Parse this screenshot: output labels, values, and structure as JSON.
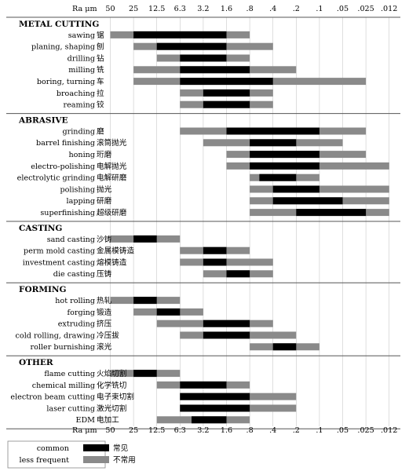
{
  "chart_data": {
    "type": "bar",
    "title": "",
    "axis_label": "Ra μm",
    "ticks": [
      "50",
      "25",
      "12.5",
      "6.3",
      "3.2",
      "1.6",
      ".8",
      ".4",
      ".2",
      ".1",
      ".05",
      ".025",
      ".012"
    ],
    "legend": {
      "placement": "bottom-left",
      "common_label": "common",
      "common_label_cn": "常见",
      "less_label": "less frequent",
      "less_label_cn": "不常用"
    },
    "colors": {
      "common": "#000000",
      "less_frequent": "#8a8a8a",
      "divider": "#555555"
    },
    "groups": [
      {
        "title": "METAL CUTTING",
        "processes": [
          {
            "label": "sawing",
            "cn": "锯",
            "less": [
              "50",
              ".8"
            ],
            "common": [
              "25",
              "1.6"
            ]
          },
          {
            "label": "planing, shaping",
            "cn": "刨",
            "less": [
              "25",
              ".4"
            ],
            "common": [
              "12.5",
              "1.6"
            ]
          },
          {
            "label": "drilling",
            "cn": "钻",
            "less": [
              "12.5",
              ".8"
            ],
            "common": [
              "6.3",
              "1.6"
            ]
          },
          {
            "label": "milling",
            "cn": "铣",
            "less": [
              "25",
              ".2"
            ],
            "common": [
              "6.3",
              ".8"
            ]
          },
          {
            "label": "boring, turning",
            "cn": "车",
            "less": [
              "25",
              ".025"
            ],
            "common": [
              "6.3",
              ".4"
            ]
          },
          {
            "label": "broaching",
            "cn": "拉",
            "less": [
              "6.3",
              ".4"
            ],
            "common": [
              "3.2",
              ".8"
            ]
          },
          {
            "label": "reaming",
            "cn": "铰",
            "less": [
              "6.3",
              ".4"
            ],
            "common": [
              "3.2",
              ".8"
            ]
          }
        ]
      },
      {
        "title": "ABRASIVE",
        "processes": [
          {
            "label": "grinding",
            "cn": "磨",
            "less": [
              "6.3",
              ".025"
            ],
            "common": [
              "1.6",
              ".1"
            ]
          },
          {
            "label": "barrel finishing",
            "cn": "滚筒抛光",
            "less": [
              "3.2",
              ".05"
            ],
            "common": [
              ".8",
              ".2"
            ]
          },
          {
            "label": "honing",
            "cn": "珩磨",
            "less": [
              "1.6",
              ".025"
            ],
            "common": [
              ".8",
              ".1"
            ]
          },
          {
            "label": "electro-polishing",
            "cn": "电解抛光",
            "less": [
              "1.6",
              ".012"
            ],
            "common": [
              ".8",
              ".1"
            ]
          },
          {
            "label": "electrolytic grinding",
            "cn": "电解研磨",
            "less": [
              ".8",
              ".1"
            ],
            "common": [
              ".6",
              ".2"
            ]
          },
          {
            "label": "polishing",
            "cn": "抛光",
            "less": [
              ".8",
              ".012"
            ],
            "common": [
              ".4",
              ".1"
            ]
          },
          {
            "label": "lapping",
            "cn": "研磨",
            "less": [
              ".8",
              ".012"
            ],
            "common": [
              ".4",
              ".05"
            ]
          },
          {
            "label": "superfinishing",
            "cn": "超级研磨",
            "less": [
              ".8",
              ".012"
            ],
            "common": [
              ".2",
              ".025"
            ]
          }
        ]
      },
      {
        "title": "CASTING",
        "processes": [
          {
            "label": "sand casting",
            "cn": "沙铸",
            "less": [
              "50",
              "6.3"
            ],
            "common": [
              "25",
              "12.5"
            ]
          },
          {
            "label": "perm mold casting",
            "cn": "金属模铸造",
            "less": [
              "6.3",
              ".8"
            ],
            "common": [
              "3.2",
              "1.6"
            ]
          },
          {
            "label": "investment casting",
            "cn": "熔模铸造",
            "less": [
              "6.3",
              ".4"
            ],
            "common": [
              "3.2",
              "1.6"
            ]
          },
          {
            "label": "die casting",
            "cn": "压铸",
            "less": [
              "3.2",
              ".4"
            ],
            "common": [
              "1.6",
              ".8"
            ]
          }
        ]
      },
      {
        "title": "FORMING",
        "processes": [
          {
            "label": "hot rolling",
            "cn": "热轧",
            "less": [
              "50",
              "6.3"
            ],
            "common": [
              "25",
              "12.5"
            ]
          },
          {
            "label": "forging",
            "cn": "锻造",
            "less": [
              "25",
              "3.2"
            ],
            "common": [
              "12.5",
              "6.3"
            ]
          },
          {
            "label": "extruding",
            "cn": "挤压",
            "less": [
              "12.5",
              ".4"
            ],
            "common": [
              "3.2",
              ".8"
            ]
          },
          {
            "label": "cold rolling, drawing",
            "cn": "冷压拔",
            "less": [
              "6.3",
              ".2"
            ],
            "common": [
              "3.2",
              ".8"
            ]
          },
          {
            "label": "roller burnishing",
            "cn": "滚光",
            "less": [
              ".8",
              ".1"
            ],
            "common": [
              ".4",
              ".2"
            ]
          }
        ]
      },
      {
        "title": "OTHER",
        "processes": [
          {
            "label": "flame cutting",
            "cn": "火焰切割",
            "less": [
              "50",
              "6.3"
            ],
            "common": [
              "25",
              "12.5"
            ]
          },
          {
            "label": "chemical milling",
            "cn": "化学铣切",
            "less": [
              "12.5",
              ".8"
            ],
            "common": [
              "6.3",
              "1.6"
            ]
          },
          {
            "label": "electron beam cutting",
            "cn": "电子束切割",
            "less": [
              "6.3",
              ".2"
            ],
            "common": [
              "6.3",
              ".8"
            ]
          },
          {
            "label": "laser cutting",
            "cn": "激光切割",
            "less": [
              "6.3",
              ".2"
            ],
            "common": [
              "6.3",
              ".8"
            ]
          },
          {
            "label": "EDM",
            "cn": "电加工",
            "less": [
              "12.5",
              ".8"
            ],
            "common": [
              "4.5",
              "1.6"
            ]
          }
        ]
      }
    ]
  }
}
